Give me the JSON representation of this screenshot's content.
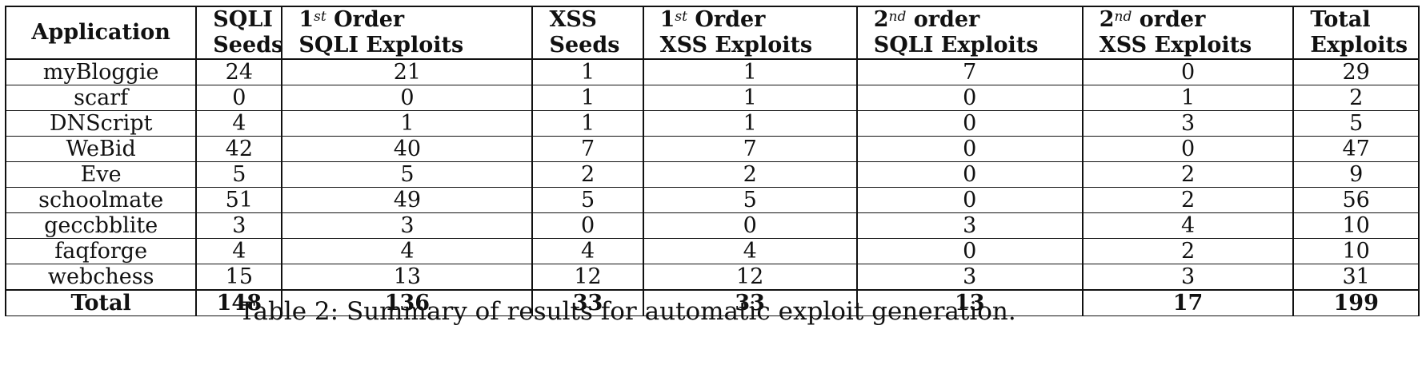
{
  "table": {
    "headers": [
      {
        "line1": "Application",
        "line2": ""
      },
      {
        "line1": "SQLI",
        "line2": "Seeds"
      },
      {
        "prefix": "1",
        "sup": "st",
        "suffix": " Order",
        "line2": "SQLI Exploits"
      },
      {
        "line1": "XSS",
        "line2": "Seeds"
      },
      {
        "prefix": "1",
        "sup": "st",
        "suffix": " Order",
        "line2": "XSS Exploits"
      },
      {
        "prefix": "2",
        "sup": "nd",
        "suffix": " order",
        "line2": "SQLI Exploits"
      },
      {
        "prefix": "2",
        "sup": "nd",
        "suffix": " order",
        "line2": "XSS Exploits"
      },
      {
        "line1": "Total",
        "line2": "Exploits"
      }
    ],
    "rows": [
      [
        "myBloggie",
        "24",
        "21",
        "1",
        "1",
        "7",
        "0",
        "29"
      ],
      [
        "scarf",
        "0",
        "0",
        "1",
        "1",
        "0",
        "1",
        "2"
      ],
      [
        "DNScript",
        "4",
        "1",
        "1",
        "1",
        "0",
        "3",
        "5"
      ],
      [
        "WeBid",
        "42",
        "40",
        "7",
        "7",
        "0",
        "0",
        "47"
      ],
      [
        "Eve",
        "5",
        "5",
        "2",
        "2",
        "0",
        "2",
        "9"
      ],
      [
        "schoolmate",
        "51",
        "49",
        "5",
        "5",
        "0",
        "2",
        "56"
      ],
      [
        "geccbblite",
        "3",
        "3",
        "0",
        "0",
        "3",
        "4",
        "10"
      ],
      [
        "faqforge",
        "4",
        "4",
        "4",
        "4",
        "0",
        "2",
        "10"
      ],
      [
        "webchess",
        "15",
        "13",
        "12",
        "12",
        "3",
        "3",
        "31"
      ]
    ],
    "total_row": [
      "Total",
      "148",
      "136",
      "33",
      "33",
      "13",
      "17",
      "199"
    ]
  },
  "caption": "Table 2: Summary of results for automatic exploit generation."
}
